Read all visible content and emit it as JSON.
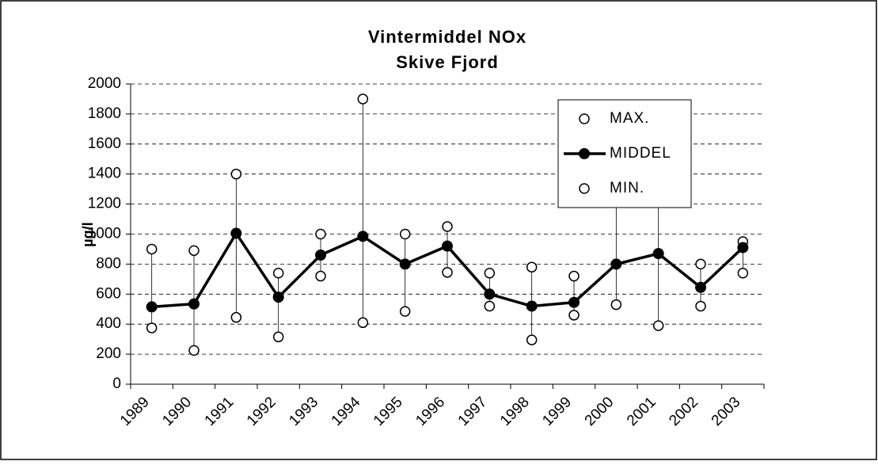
{
  "chart_data": {
    "type": "line",
    "title": "Vintermiddel  NOx",
    "subtitle": "Skive Fjord",
    "y_label": "µg/l",
    "categories": [
      "1989",
      "1990",
      "1991",
      "1992",
      "1993",
      "1994",
      "1995",
      "1996",
      "1997",
      "1998",
      "1999",
      "2000",
      "2001",
      "2002",
      "2003"
    ],
    "series": [
      {
        "name": "MAX.",
        "color": "#000000",
        "values": [
          900,
          890,
          1400,
          740,
          1000,
          1900,
          1000,
          1050,
          740,
          780,
          720,
          1300,
          1400,
          800,
          950
        ]
      },
      {
        "name": "MIDDEL",
        "color": "#000000",
        "values": [
          515,
          535,
          1005,
          580,
          860,
          985,
          800,
          920,
          600,
          520,
          545,
          800,
          870,
          645,
          910
        ]
      },
      {
        "name": "MIN.",
        "color": "#000000",
        "values": [
          375,
          225,
          445,
          315,
          720,
          410,
          485,
          745,
          520,
          295,
          460,
          530,
          390,
          520,
          740
        ]
      }
    ],
    "ylim": [
      0,
      2000
    ],
    "yticks": [
      0,
      200,
      400,
      600,
      800,
      1000,
      1200,
      1400,
      1600,
      1800,
      2000
    ],
    "grid": true
  }
}
